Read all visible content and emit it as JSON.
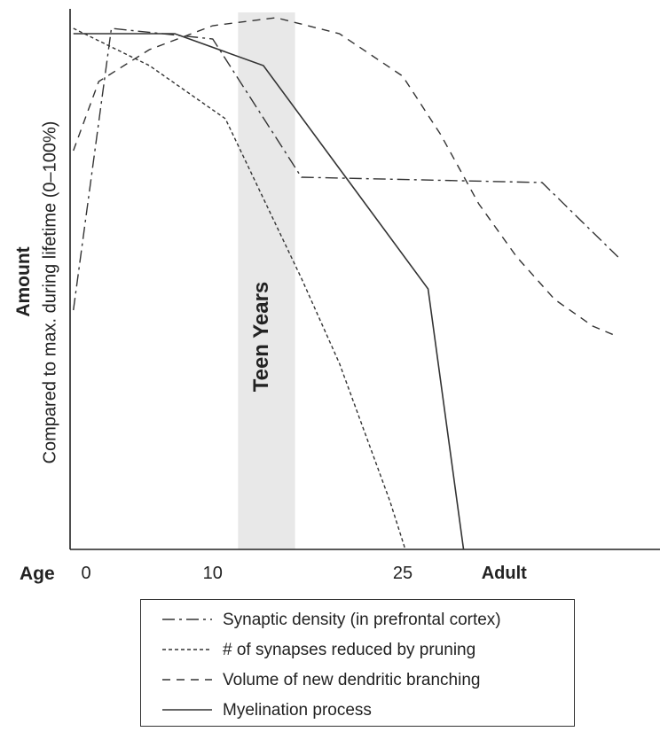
{
  "chart_data": {
    "type": "line",
    "ylabel": "Amount",
    "ylabel_sub": "Compared to max. during lifetime (0–100%)",
    "xlabel": "Age",
    "xticks": [
      {
        "label": "0",
        "x": 0,
        "bold": false
      },
      {
        "label": "10",
        "x": 10,
        "bold": false
      },
      {
        "label": "25",
        "x": 25,
        "bold": false
      },
      {
        "label": "Adult",
        "x": 33,
        "bold": true
      }
    ],
    "xlim": [
      -1.0,
      42.0
    ],
    "ylim": [
      0,
      100
    ],
    "teen_band": {
      "x0": 12,
      "x1": 16.5,
      "label": "Teen Years"
    },
    "series": [
      {
        "name": "Synaptic density (in prefrontal cortex)",
        "dash": "dashdot",
        "points": [
          [
            -1,
            45
          ],
          [
            2,
            98
          ],
          [
            10,
            96
          ],
          [
            17,
            70
          ],
          [
            36,
            69
          ],
          [
            42,
            55
          ]
        ]
      },
      {
        "name": "# of synapses reduced by pruning",
        "dash": "dotted",
        "points": [
          [
            -1,
            98
          ],
          [
            5,
            91
          ],
          [
            11,
            81
          ],
          [
            17,
            51
          ],
          [
            20,
            35
          ],
          [
            24,
            9
          ],
          [
            25.2,
            0
          ]
        ]
      },
      {
        "name": "Volume of new dendritic branching",
        "dash": "dashed",
        "points": [
          [
            -1,
            75
          ],
          [
            1,
            88
          ],
          [
            5,
            94
          ],
          [
            10,
            98.5
          ],
          [
            15,
            100
          ],
          [
            20,
            97
          ],
          [
            25,
            89
          ],
          [
            28,
            78
          ],
          [
            31,
            65
          ],
          [
            34,
            55
          ],
          [
            37,
            47
          ],
          [
            40,
            42
          ],
          [
            42,
            40
          ]
        ]
      },
      {
        "name": "Myelination process",
        "dash": "solid",
        "points": [
          [
            -1,
            97
          ],
          [
            7,
            97
          ],
          [
            14,
            91
          ],
          [
            27,
            49
          ],
          [
            29.8,
            0
          ]
        ]
      }
    ]
  },
  "colors": {
    "line": "#333333",
    "band": "#e8e8e8",
    "axis": "#222222"
  }
}
